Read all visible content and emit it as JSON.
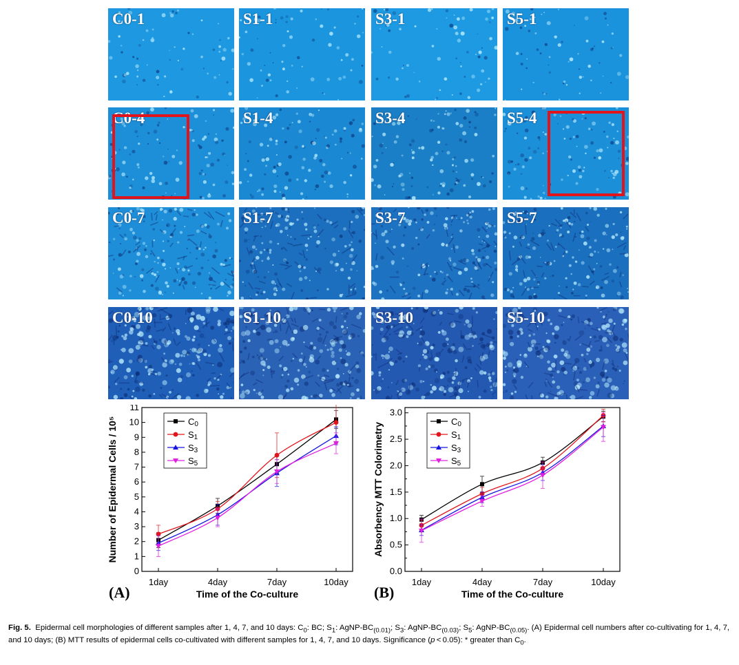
{
  "micrographs": {
    "columns": [
      "C0",
      "S1",
      "S3",
      "S5"
    ],
    "rows": [
      {
        "day": "1",
        "labels": [
          "C0-1",
          "S1-1",
          "S3-1",
          "S5-1"
        ],
        "tone": [
          "#1e98e0",
          "#1b95de",
          "#1e9ae2",
          "#1b92dc"
        ]
      },
      {
        "day": "4",
        "labels": [
          "C0-4",
          "S1-4",
          "S3-4",
          "S5-4"
        ],
        "tone": [
          "#1d8fd8",
          "#1a88d2",
          "#1a7fc6",
          "#1c8fd9"
        ]
      },
      {
        "day": "7",
        "labels": [
          "C0-7",
          "S1-7",
          "S3-7",
          "S5-7"
        ],
        "tone": [
          "#1f8ed8",
          "#1b6fbe",
          "#1d72c2",
          "#1a70bf"
        ]
      },
      {
        "day": "10",
        "labels": [
          "C0-10",
          "S1-10",
          "S3-10",
          "S5-10"
        ],
        "tone": [
          "#1f5fb8",
          "#2a62b6",
          "#2459b2",
          "#2a60b8"
        ]
      }
    ],
    "highlight_box_color": "#e0141a"
  },
  "chart_data": [
    {
      "type": "line",
      "panel": "(A)",
      "xlabel": "Time of the Co-culture",
      "ylabel": "Number of Epidermal Cells / 10⁵",
      "categories": [
        "1day",
        "4day",
        "7day",
        "10day"
      ],
      "ylim": [
        0,
        11
      ],
      "yticks": [
        0,
        1,
        2,
        3,
        4,
        5,
        6,
        7,
        8,
        9,
        10,
        11
      ],
      "legend_position": "top-left",
      "series": [
        {
          "name": "C0",
          "color": "#000000",
          "marker": "square",
          "values": [
            2.1,
            4.4,
            7.2,
            10.2
          ],
          "errors": [
            0.5,
            0.5,
            0.6,
            0.6
          ]
        },
        {
          "name": "S1",
          "color": "#e0141a",
          "marker": "circle",
          "values": [
            2.5,
            4.2,
            7.8,
            10.0
          ],
          "errors": [
            0.6,
            0.5,
            1.5,
            1.4
          ]
        },
        {
          "name": "S3",
          "color": "#1515e0",
          "marker": "triangle",
          "values": [
            1.9,
            3.8,
            6.6,
            9.1
          ],
          "errors": [
            0.5,
            0.7,
            0.9,
            0.6
          ]
        },
        {
          "name": "S5",
          "color": "#e020e0",
          "marker": "triangle-down",
          "values": [
            1.7,
            3.6,
            6.7,
            8.6
          ],
          "errors": [
            0.7,
            0.6,
            0.8,
            0.7
          ]
        }
      ]
    },
    {
      "type": "line",
      "panel": "(B)",
      "xlabel": "Time of the Co-culture",
      "ylabel": "Absorbency MTT Colorimetry",
      "categories": [
        "1day",
        "4day",
        "7day",
        "10day"
      ],
      "ylim": [
        0,
        3.1
      ],
      "yticks": [
        "0.0",
        "0.5",
        "1.0",
        "1.5",
        "2.0",
        "2.5",
        "3.0"
      ],
      "legend_position": "top-left",
      "series": [
        {
          "name": "C0",
          "color": "#000000",
          "marker": "square",
          "values": [
            0.98,
            1.65,
            2.06,
            2.93
          ],
          "errors": [
            0.08,
            0.15,
            0.1,
            0.1
          ]
        },
        {
          "name": "S1",
          "color": "#e0141a",
          "marker": "circle",
          "values": [
            0.87,
            1.47,
            1.95,
            2.95
          ],
          "errors": [
            0.1,
            0.12,
            0.12,
            0.12
          ]
        },
        {
          "name": "S3",
          "color": "#1515e0",
          "marker": "triangle",
          "values": [
            0.78,
            1.4,
            1.87,
            2.75
          ],
          "errors": [
            0.1,
            0.1,
            0.15,
            0.2
          ]
        },
        {
          "name": "S5",
          "color": "#e020e0",
          "marker": "triangle-down",
          "values": [
            0.77,
            1.33,
            1.82,
            2.73
          ],
          "errors": [
            0.22,
            0.1,
            0.25,
            0.27
          ]
        }
      ]
    }
  ],
  "caption": {
    "label": "Fig. 5.",
    "text_html": "Epidermal cell morphologies of different samples after 1, 4, 7, and 10 days: C<sub>0</sub>: BC; S<sub>1</sub>: AgNP-BC<sub>(0.01)</sub>; S<sub>3</sub>: AgNP-BC<sub>(0.03)</sub>; S<sub>5</sub>: AgNP-BC<sub>(0.05)</sub>. (A) Epidermal cell numbers after co-cultivating for 1, 4, 7, and 10 days; (B) MTT results of epidermal cells co-cultivated with different samples for 1, 4, 7, and 10 days. Significance (<i>p</i>&thinsp;&lt;&thinsp;0.05): * greater than C<sub>0</sub>."
  }
}
